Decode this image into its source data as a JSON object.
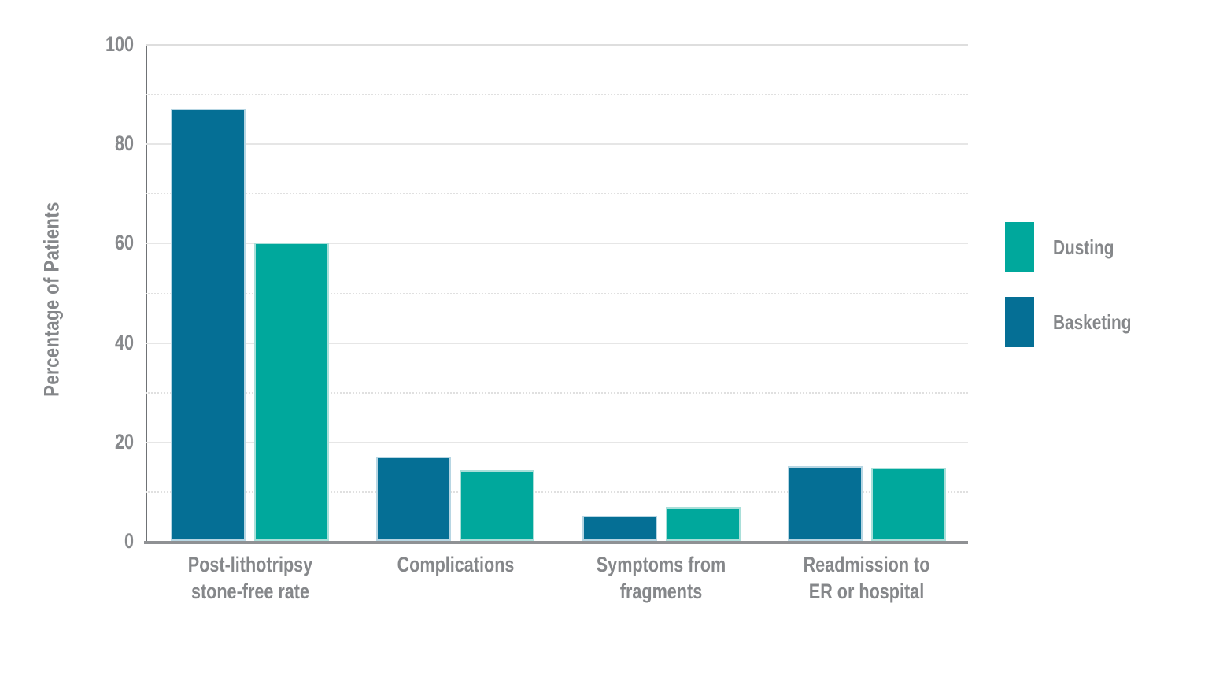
{
  "chart_data": {
    "type": "bar",
    "title": "",
    "xlabel": "",
    "ylabel": "Percentage of Patients",
    "ylim": [
      0,
      100
    ],
    "yticks": [
      0,
      20,
      40,
      60,
      80,
      100
    ],
    "minor_gridlines": [
      10,
      30,
      50,
      70,
      90
    ],
    "grid": true,
    "categories": [
      "Post-lithotripsy stone-free rate",
      "Complications",
      "Symptoms from fragments",
      "Readmission to ER or hospital"
    ],
    "category_label_lines": [
      [
        "Post-lithotripsy",
        "stone-free rate"
      ],
      [
        "Complications"
      ],
      [
        "Symptoms from",
        "fragments"
      ],
      [
        "Readmission to",
        "ER or hospital"
      ]
    ],
    "series": [
      {
        "name": "Basketing",
        "color": "#056f95",
        "border_color": "#b7d6e3",
        "values": [
          87,
          17,
          5,
          15
        ]
      },
      {
        "name": "Dusting",
        "color": "#00a89c",
        "border_color": "#a9dfd9",
        "values": [
          60,
          14.3,
          6.8,
          14.8
        ]
      }
    ],
    "legend": {
      "position": "right",
      "entries": [
        {
          "label": "Dusting",
          "color": "#00a89c"
        },
        {
          "label": "Basketing",
          "color": "#056f95"
        }
      ]
    }
  }
}
